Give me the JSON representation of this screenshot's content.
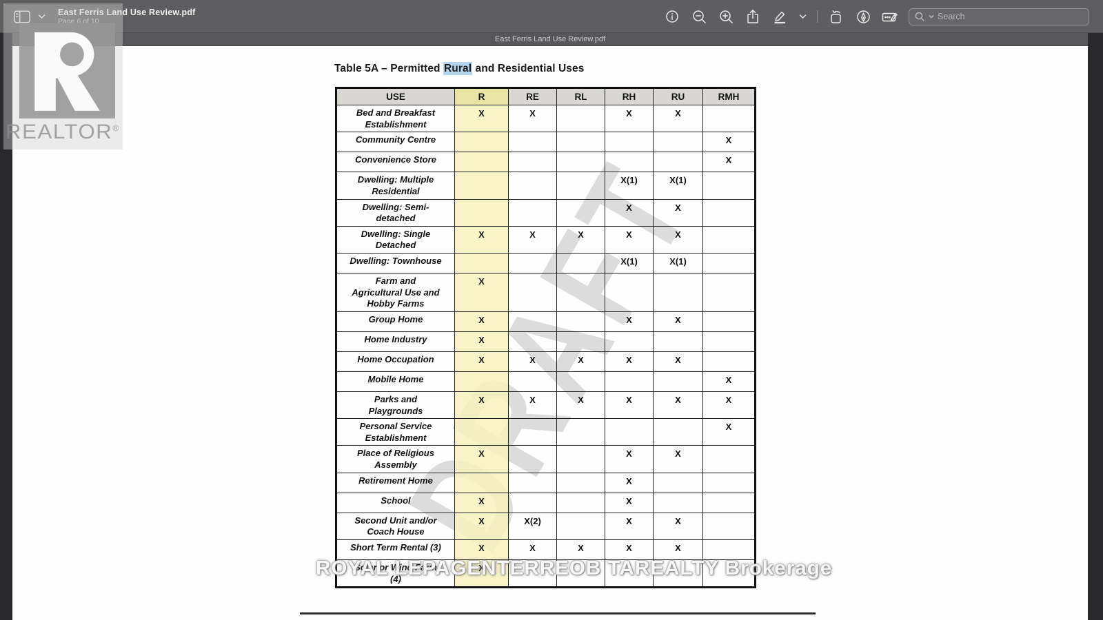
{
  "window": {
    "toolbar": {
      "title": "East Ferris Land Use Review.pdf",
      "subtitle": "Page 6 of 10",
      "search_placeholder": "Search",
      "icons": [
        "sidebar-icon",
        "chevron-down-icon",
        "info-icon",
        "zoom-out-icon",
        "zoom-in-icon",
        "share-icon",
        "highlighter-icon",
        "chevron-down-icon",
        "rotate-left-icon",
        "markup-pen-icon",
        "form-fill-icon",
        "search-icon"
      ]
    },
    "filename_bar": "East Ferris Land Use Review.pdf"
  },
  "document": {
    "title": {
      "pre": "Table 5A – Permitted ",
      "highlight": "Rural",
      "post": " and Residential Uses"
    },
    "table": {
      "columns": [
        "USE",
        "R",
        "RE",
        "RL",
        "RH",
        "RU",
        "RMH"
      ],
      "highlight_col_index": 1,
      "rows": [
        {
          "label": "Bed and Breakfast\nEstablishment",
          "cells": [
            "X",
            "X",
            "",
            "X",
            "X",
            ""
          ]
        },
        {
          "label": "Community Centre",
          "cells": [
            "",
            "",
            "",
            "",
            "",
            "X"
          ]
        },
        {
          "label": "Convenience Store",
          "cells": [
            "",
            "",
            "",
            "",
            "",
            "X"
          ]
        },
        {
          "label": "Dwelling: Multiple\nResidential",
          "cells": [
            "",
            "",
            "",
            "X(1)",
            "X(1)",
            ""
          ]
        },
        {
          "label": "Dwelling: Semi-\ndetached",
          "cells": [
            "",
            "",
            "",
            "X",
            "X",
            ""
          ]
        },
        {
          "label": "Dwelling: Single\nDetached",
          "cells": [
            "X",
            "X",
            "X",
            "X",
            "X",
            ""
          ]
        },
        {
          "label": "Dwelling: Townhouse",
          "cells": [
            "",
            "",
            "",
            "X(1)",
            "X(1)",
            ""
          ]
        },
        {
          "label": "Farm and\nAgricultural Use and\nHobby Farms",
          "cells": [
            "X",
            "",
            "",
            "",
            "",
            ""
          ]
        },
        {
          "label": "Group Home",
          "cells": [
            "X",
            "",
            "",
            "X",
            "X",
            ""
          ]
        },
        {
          "label": "Home Industry",
          "cells": [
            "X",
            "",
            "",
            "",
            "",
            ""
          ]
        },
        {
          "label": "Home Occupation",
          "cells": [
            "X",
            "X",
            "X",
            "X",
            "X",
            ""
          ]
        },
        {
          "label": "Mobile Home",
          "cells": [
            "",
            "",
            "",
            "",
            "",
            "X"
          ]
        },
        {
          "label": "Parks and\nPlaygrounds",
          "cells": [
            "X",
            "X",
            "X",
            "X",
            "X",
            "X"
          ]
        },
        {
          "label": "Personal Service\nEstablishment",
          "cells": [
            "",
            "",
            "",
            "",
            "",
            "X"
          ]
        },
        {
          "label": "Place of Religious\nAssembly",
          "cells": [
            "X",
            "",
            "",
            "X",
            "X",
            ""
          ]
        },
        {
          "label": "Retirement Home",
          "cells": [
            "",
            "",
            "",
            "X",
            "",
            ""
          ]
        },
        {
          "label": "School",
          "cells": [
            "X",
            "",
            "",
            "X",
            "",
            ""
          ]
        },
        {
          "label": "Second Unit and/or\nCoach House",
          "cells": [
            "X",
            "X(2)",
            "",
            "X",
            "X",
            ""
          ]
        },
        {
          "label": "Short Term Rental (3)",
          "cells": [
            "X",
            "X",
            "X",
            "X",
            "X",
            ""
          ]
        },
        {
          "label": "Solar or Wind Farm\n(4)",
          "cells": [
            "X",
            "",
            "",
            "",
            "",
            ""
          ]
        }
      ]
    },
    "watermarks": {
      "realtor": "REALTOR",
      "realtor_reg": "®",
      "draft": "DRAFT",
      "brokerage": "ROYAL LEPAGENTERREOB TAREALTY Brokerage"
    },
    "colors": {
      "column_highlight": "#f7f1be",
      "header_column_highlight": "#e9e3a4",
      "search_text_highlight": "#b5d5ec",
      "header_bg": "#d8d7d3",
      "toolbar_bg": "#5e5d60"
    }
  }
}
